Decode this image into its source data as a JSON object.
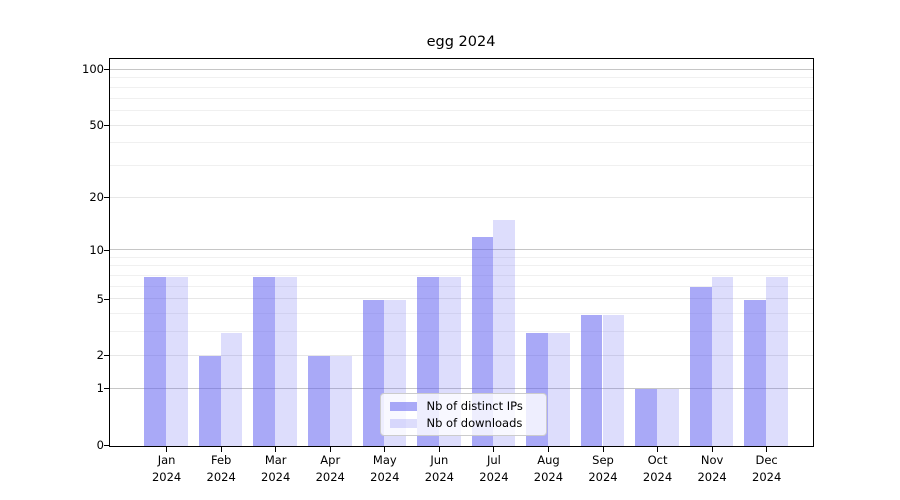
{
  "title": "egg 2024",
  "chart_data": {
    "type": "bar",
    "title": "egg 2024",
    "categories": [
      "Jan",
      "Feb",
      "Mar",
      "Apr",
      "May",
      "Jun",
      "Jul",
      "Aug",
      "Sep",
      "Oct",
      "Nov",
      "Dec"
    ],
    "year_label": "2024",
    "series": [
      {
        "name": "Nb of distinct IPs",
        "color": "#a9a9f7",
        "values": [
          7,
          2,
          7,
          2,
          5,
          7,
          12,
          3,
          4,
          1,
          6,
          5
        ]
      },
      {
        "name": "Nb of downloads",
        "color": "#dcdcfc",
        "values": [
          7,
          3,
          7,
          2,
          5,
          7,
          15,
          3,
          4,
          1,
          7,
          7
        ]
      }
    ],
    "y_axis": {
      "scale": "log10(1+x)",
      "tick_values": [
        0,
        1,
        2,
        5,
        10,
        20,
        50,
        100
      ],
      "tick_labels": [
        "0",
        "1",
        "2",
        "5",
        "10",
        "20",
        "50",
        "100"
      ],
      "ylim": [
        0,
        114
      ],
      "major_grid_values": [
        1,
        10,
        100
      ],
      "minor_grid_values": [
        3,
        4,
        6,
        7,
        8,
        9,
        30,
        40,
        60,
        70,
        80,
        90
      ]
    },
    "grid": "on",
    "legend": {
      "position": "lower center",
      "entries": [
        "Nb of distinct IPs",
        "Nb of downloads"
      ]
    }
  }
}
